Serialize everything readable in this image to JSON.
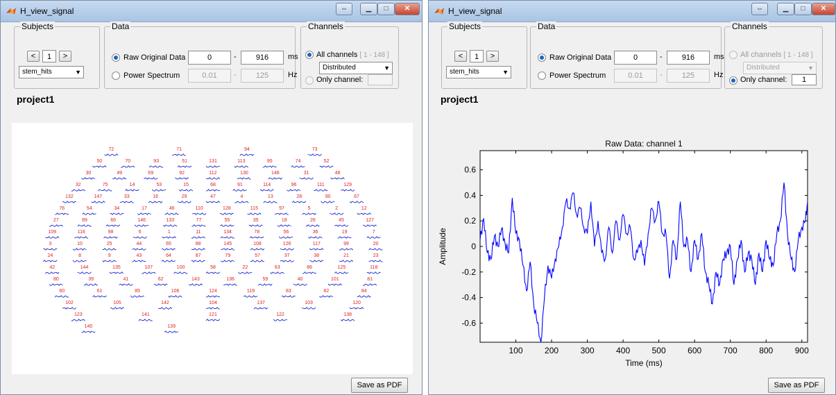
{
  "windows": [
    {
      "title": "H_view_signal",
      "subjects": {
        "legend": "Subjects",
        "prev": "<",
        "value": "1",
        "next": ">",
        "dropdown": "stem_hits"
      },
      "data": {
        "legend": "Data",
        "raw_label": "Raw Original Data",
        "raw_from": "0",
        "raw_to": "916",
        "raw_unit": "ms",
        "power_label": "Power Spectrum",
        "power_from": "0.01",
        "power_to": "125",
        "power_unit": "Hz",
        "dash": "-"
      },
      "channels": {
        "legend": "Channels",
        "all_label": "All channels",
        "all_range": "[ 1 - 148 ]",
        "dropdown": "Distributed",
        "only_label": "Only channel:",
        "only_value": ""
      },
      "project": "project1",
      "save": "Save as PDF",
      "channel_labels": [
        "72",
        "71",
        "94",
        "73",
        "50",
        "70",
        "93",
        "51",
        "131",
        "113",
        "95",
        "74",
        "52",
        "30",
        "49",
        "69",
        "92",
        "112",
        "130",
        "148",
        "31",
        "48",
        "32",
        "75",
        "14",
        "53",
        "15",
        "68",
        "91",
        "114",
        "96",
        "111",
        "129",
        "132",
        "147",
        "33",
        "16",
        "29",
        "47",
        "4",
        "13",
        "28",
        "90",
        "67",
        "76",
        "54",
        "34",
        "17",
        "46",
        "110",
        "128",
        "115",
        "97",
        "5",
        "2",
        "12",
        "27",
        "89",
        "66",
        "146",
        "133",
        "77",
        "55",
        "35",
        "18",
        "26",
        "45",
        "127",
        "109",
        "116",
        "98",
        "6",
        "1",
        "11",
        "134",
        "78",
        "56",
        "36",
        "19",
        "7",
        "3",
        "10",
        "25",
        "44",
        "65",
        "88",
        "145",
        "108",
        "126",
        "117",
        "99",
        "20",
        "24",
        "8",
        "9",
        "43",
        "64",
        "87",
        "79",
        "57",
        "37",
        "38",
        "21",
        "23",
        "42",
        "144",
        "135",
        "107",
        "100",
        "58",
        "22",
        "63",
        "86",
        "125",
        "118",
        "80",
        "39",
        "41",
        "62",
        "143",
        "136",
        "59",
        "40",
        "101",
        "81",
        "60",
        "61",
        "85",
        "106",
        "124",
        "119",
        "83",
        "82",
        "84",
        "102",
        "105",
        "142",
        "104",
        "137",
        "103",
        "120",
        "123",
        "141",
        "121",
        "122",
        "138",
        "140",
        "139"
      ]
    },
    {
      "title": "H_view_signal",
      "subjects": {
        "legend": "Subjects",
        "prev": "<",
        "value": "1",
        "next": ">",
        "dropdown": "stem_hits"
      },
      "data": {
        "legend": "Data",
        "raw_label": "Raw Original Data",
        "raw_from": "0",
        "raw_to": "916",
        "raw_unit": "ms",
        "power_label": "Power Spectrum",
        "power_from": "0.01",
        "power_to": "125",
        "power_unit": "Hz",
        "dash": "-"
      },
      "channels": {
        "legend": "Channels",
        "all_label": "All channels",
        "all_range": "[ 1 - 148 ]",
        "dropdown": "Distributed",
        "only_label": "Only channel:",
        "only_value": "1"
      },
      "project": "project1",
      "save": "Save as PDF"
    }
  ],
  "chart_data": {
    "type": "line",
    "title": "Raw Data: channel 1",
    "xlabel": "Time (ms)",
    "ylabel": "Amplitude",
    "xlim": [
      0,
      916
    ],
    "ylim": [
      -0.75,
      0.75
    ],
    "xticks": [
      100,
      200,
      300,
      400,
      500,
      600,
      700,
      800,
      900
    ],
    "yticks": [
      -0.6,
      -0.4,
      -0.2,
      0,
      0.2,
      0.4,
      0.6
    ],
    "color": "#0000ff",
    "x": [
      0,
      10,
      20,
      30,
      40,
      50,
      60,
      70,
      80,
      90,
      100,
      110,
      120,
      130,
      140,
      150,
      160,
      170,
      180,
      190,
      200,
      210,
      220,
      230,
      240,
      250,
      260,
      270,
      280,
      290,
      300,
      310,
      320,
      330,
      340,
      350,
      360,
      370,
      380,
      390,
      400,
      410,
      420,
      430,
      440,
      450,
      460,
      470,
      480,
      490,
      500,
      510,
      520,
      530,
      540,
      550,
      560,
      570,
      580,
      590,
      600,
      610,
      620,
      630,
      640,
      650,
      660,
      670,
      680,
      690,
      700,
      710,
      720,
      730,
      740,
      750,
      760,
      770,
      780,
      790,
      800,
      810,
      820,
      830,
      840,
      850,
      860,
      870,
      880,
      890,
      900,
      910,
      916
    ],
    "y": [
      0.05,
      0.22,
      -0.05,
      -0.1,
      0.08,
      0.0,
      0.14,
      0.02,
      -0.05,
      0.38,
      0.1,
      0.05,
      -0.15,
      -0.35,
      -0.12,
      -0.45,
      -0.6,
      -0.75,
      -0.4,
      -0.15,
      -0.25,
      -0.1,
      0.0,
      0.15,
      0.35,
      0.3,
      0.42,
      0.25,
      0.3,
      0.15,
      0.1,
      0.35,
      0.0,
      0.2,
      -0.05,
      -0.1,
      0.15,
      -0.05,
      0.2,
      0.05,
      0.25,
      0.1,
      0.15,
      -0.1,
      -0.05,
      0.05,
      -0.15,
      0.1,
      0.3,
      0.2,
      0.35,
      0.1,
      0.1,
      -0.25,
      0.05,
      -0.1,
      0.35,
      0.0,
      0.05,
      -0.2,
      0.05,
      -0.1,
      0.1,
      -0.2,
      -0.3,
      -0.45,
      -0.2,
      -0.3,
      -0.1,
      -0.05,
      0.0,
      -0.3,
      -0.1,
      0.05,
      -0.2,
      -0.05,
      -0.1,
      -0.3,
      -0.05,
      -0.2,
      0.05,
      -0.1,
      -0.15,
      0.1,
      0.2,
      0.5,
      0.1,
      -0.1,
      -0.2,
      0.05,
      0.15,
      0.2,
      0.35
    ]
  }
}
